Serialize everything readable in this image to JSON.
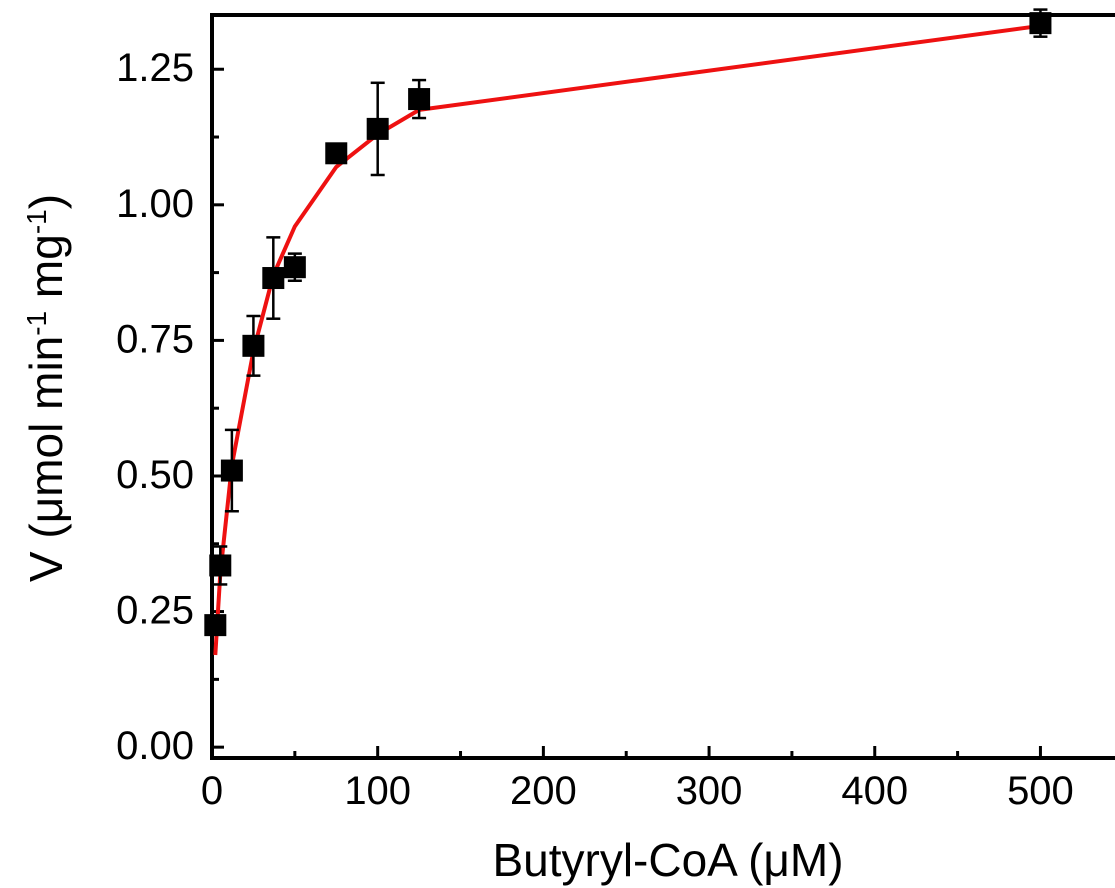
{
  "chart_data": {
    "type": "scatter",
    "title": "",
    "xlabel": "Butyryl-CoA (μM)",
    "ylabel": {
      "prefix": "V (μmol min",
      "sup1": "-1",
      "mid": " mg",
      "sup2": "-1",
      "suffix": ")"
    },
    "xlim": [
      0,
      545
    ],
    "ylim": [
      -0.02,
      1.35
    ],
    "x_ticks": [
      0,
      100,
      200,
      300,
      400,
      500
    ],
    "x_tick_labels": [
      "0",
      "100",
      "200",
      "300",
      "400",
      "500"
    ],
    "y_ticks": [
      0.0,
      0.25,
      0.5,
      0.75,
      1.0,
      1.25
    ],
    "y_tick_labels": [
      "0.00",
      "0.25",
      "0.50",
      "0.75",
      "1.00",
      "1.25"
    ],
    "grid": false,
    "legend": "none",
    "series": [
      {
        "kind": "points",
        "color": "#000000",
        "marker": "square",
        "x": [
          2,
          5,
          12,
          25,
          37,
          50,
          75,
          100,
          125,
          500
        ],
        "y": [
          0.225,
          0.335,
          0.51,
          0.74,
          0.865,
          0.885,
          1.095,
          1.14,
          1.195,
          1.335
        ],
        "error": [
          0.01,
          0.035,
          0.075,
          0.055,
          0.075,
          0.025,
          0.01,
          0.085,
          0.035,
          0.025
        ]
      },
      {
        "kind": "fit",
        "color": "#ee1111",
        "x": [
          2,
          5,
          12,
          25,
          37,
          50,
          75,
          100,
          125,
          500
        ],
        "y": [
          0.17,
          0.32,
          0.52,
          0.73,
          0.87,
          0.96,
          1.07,
          1.13,
          1.175,
          1.33
        ]
      }
    ]
  }
}
